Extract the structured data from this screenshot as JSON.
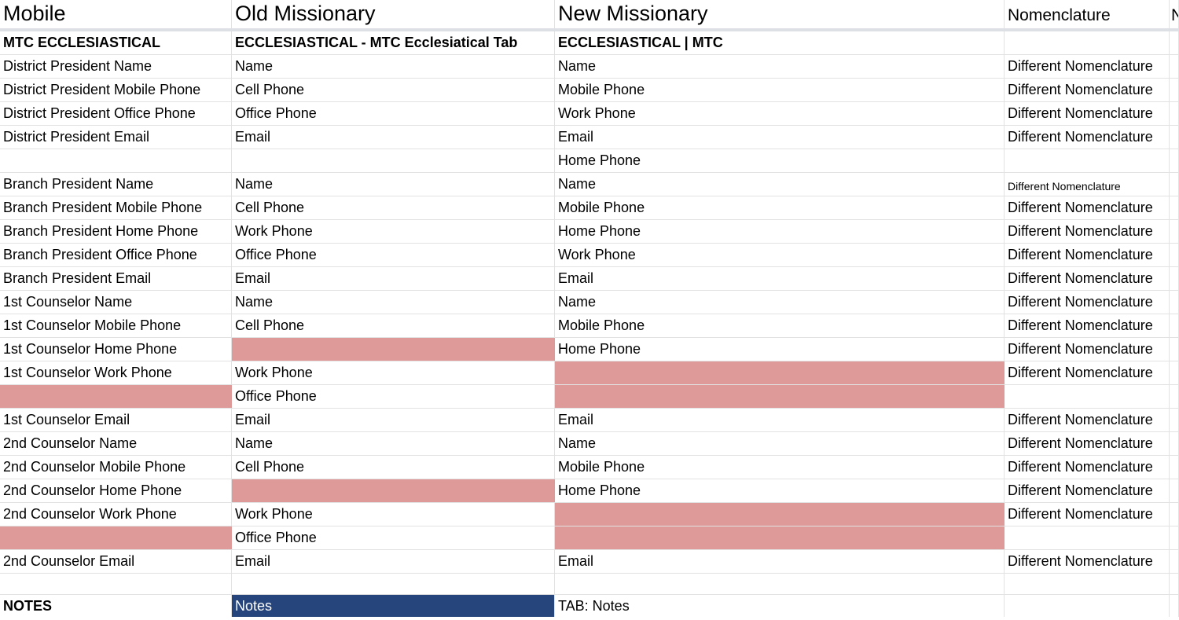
{
  "columns": [
    "Mobile",
    "Old Missionary",
    "New Missionary",
    "Nomenclature",
    "N"
  ],
  "colors": {
    "missing": "#dd9a99",
    "selected": "#26457d"
  },
  "rows": [
    {
      "cells": [
        "MTC ECCLESIASTICAL",
        "ECCLESIASTICAL - MTC Ecclesiatical Tab",
        "ECCLESIASTICAL | MTC",
        ""
      ],
      "bold": true
    },
    {
      "cells": [
        "District President Name",
        "Name",
        "Name",
        "Different Nomenclature"
      ]
    },
    {
      "cells": [
        "District President Mobile Phone",
        "Cell Phone",
        "Mobile Phone",
        "Different Nomenclature"
      ]
    },
    {
      "cells": [
        "District President Office Phone",
        "Office Phone",
        "Work Phone",
        "Different Nomenclature"
      ]
    },
    {
      "cells": [
        "District President Email",
        "Email",
        "Email",
        "Different Nomenclature"
      ]
    },
    {
      "cells": [
        "",
        "",
        "Home Phone",
        ""
      ]
    },
    {
      "cells": [
        "Branch President Name",
        "Name",
        "Name",
        "Different Nomenclature"
      ],
      "smallNomenclature": true
    },
    {
      "cells": [
        "Branch President Mobile Phone",
        "Cell Phone",
        "Mobile Phone",
        "Different Nomenclature"
      ]
    },
    {
      "cells": [
        "Branch President Home Phone",
        "Work Phone",
        "Home Phone",
        "Different Nomenclature"
      ]
    },
    {
      "cells": [
        "Branch President Office Phone",
        "Office Phone",
        "Work Phone",
        "Different Nomenclature"
      ]
    },
    {
      "cells": [
        "Branch President Email",
        "Email",
        "Email",
        "Different Nomenclature"
      ]
    },
    {
      "cells": [
        "1st Counselor Name",
        "Name",
        "Name",
        "Different Nomenclature"
      ]
    },
    {
      "cells": [
        "1st Counselor Mobile Phone",
        "Cell Phone",
        "Mobile Phone",
        "Different Nomenclature"
      ]
    },
    {
      "cells": [
        "1st Counselor Home Phone",
        "",
        "Home Phone",
        "Different Nomenclature"
      ],
      "red": [
        1
      ]
    },
    {
      "cells": [
        "1st Counselor Work Phone",
        "Work Phone",
        "",
        "Different Nomenclature"
      ],
      "red": [
        2
      ]
    },
    {
      "cells": [
        "",
        "Office Phone",
        "",
        ""
      ],
      "red": [
        0,
        2
      ]
    },
    {
      "cells": [
        "1st Counselor Email",
        "Email",
        "Email",
        "Different Nomenclature"
      ]
    },
    {
      "cells": [
        "2nd Counselor Name",
        "Name",
        "Name",
        "Different Nomenclature"
      ]
    },
    {
      "cells": [
        "2nd Counselor Mobile Phone",
        "Cell Phone",
        "Mobile Phone",
        "Different Nomenclature"
      ]
    },
    {
      "cells": [
        "2nd Counselor Home Phone",
        "",
        "Home Phone",
        "Different Nomenclature"
      ],
      "red": [
        1
      ]
    },
    {
      "cells": [
        "2nd Counselor Work Phone",
        "Work Phone",
        "",
        "Different Nomenclature"
      ],
      "red": [
        2
      ]
    },
    {
      "cells": [
        "",
        "Office Phone",
        "",
        ""
      ],
      "red": [
        0,
        2
      ]
    },
    {
      "cells": [
        "2nd Counselor Email",
        "Email",
        "Email",
        "Different Nomenclature"
      ]
    },
    {
      "cells": [
        "",
        "",
        "",
        ""
      ],
      "tall": true
    },
    {
      "cells": [
        "NOTES",
        "Notes",
        "TAB: Notes",
        ""
      ],
      "notes": true
    }
  ]
}
